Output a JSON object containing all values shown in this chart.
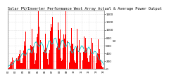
{
  "title": "Solar PV/Inverter Performance West Array Actual & Average Power Output",
  "ylabel": "W",
  "background_color": "#ffffff",
  "plot_background": "#ffffff",
  "bar_color": "#ff0000",
  "avg_line_color": "#00cccc",
  "grid_color": "#cccccc",
  "ylim": [
    0,
    1500
  ],
  "yticks": [
    0,
    200,
    400,
    600,
    800,
    1000,
    1200,
    1400
  ],
  "num_bars": 200,
  "title_fontsize": 3.8,
  "tick_fontsize": 3.0,
  "days": 14
}
